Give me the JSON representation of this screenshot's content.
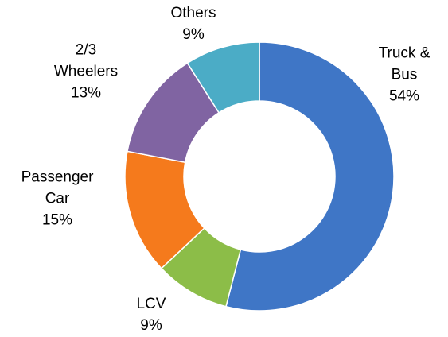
{
  "chart_data": {
    "type": "donut",
    "categories": [
      "Truck & Bus",
      "LCV",
      "Passenger Car",
      "2/3 Wheelers",
      "Others"
    ],
    "values": [
      54,
      9,
      15,
      13,
      9
    ],
    "value_labels": [
      "54%",
      "9%",
      "15%",
      "13%",
      "9%"
    ],
    "colors": [
      "#3f76c6",
      "#8cbd48",
      "#f57a1c",
      "#8064a2",
      "#4bacc6"
    ]
  }
}
